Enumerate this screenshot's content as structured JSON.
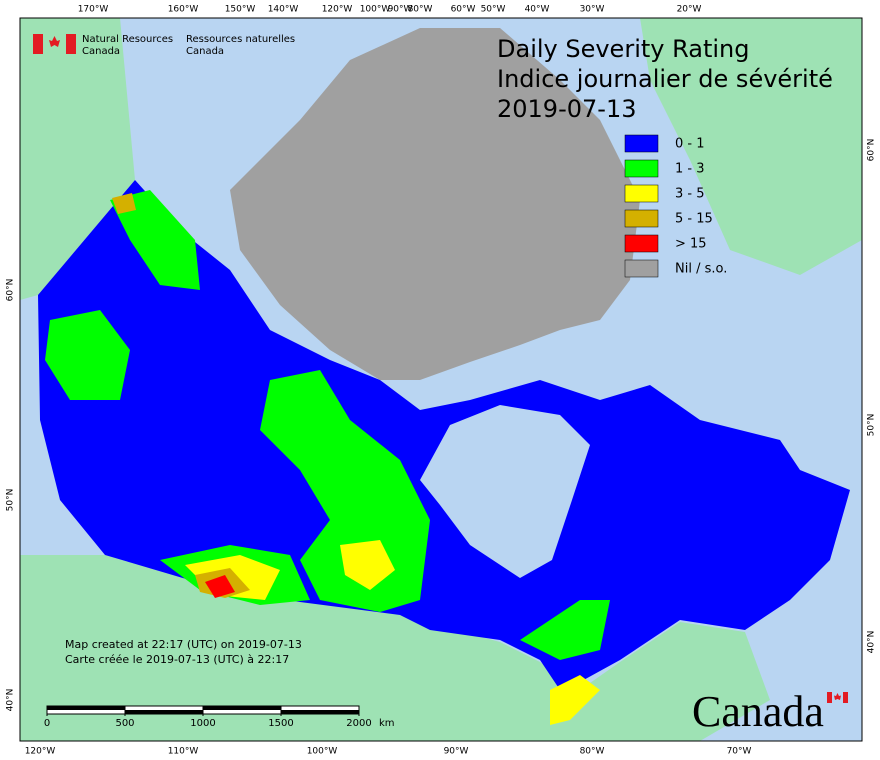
{
  "agency": {
    "en_line1": "Natural Resources",
    "en_line2": "Canada",
    "fr_line1": "Ressources naturelles",
    "fr_line2": "Canada"
  },
  "title": {
    "en": "Daily Severity Rating",
    "fr": "Indice journalier de sévérité",
    "date": "2019-07-13"
  },
  "legend": [
    {
      "label": "0 - 1",
      "color": "#0000ff"
    },
    {
      "label": "1 - 3",
      "color": "#00ff00"
    },
    {
      "label": "3 - 5",
      "color": "#ffff00"
    },
    {
      "label": "5 - 15",
      "color": "#d4b000"
    },
    {
      "label": "> 15",
      "color": "#ff0000"
    },
    {
      "label": "Nil / s.o.",
      "color": "#a0a0a0"
    }
  ],
  "credits": [
    "Map created at 22:17 (UTC) on 2019-07-13",
    "Carte créée le 2019-07-13 (UTC) à 22:17"
  ],
  "scale_bar": {
    "ticks": [
      0,
      500,
      1000,
      1500,
      2000
    ],
    "unit": "km"
  },
  "graticule": {
    "top": [
      "170°W",
      "160°W",
      "150°W",
      "140°W",
      "120°W",
      "100°W",
      "90°W",
      "80°W",
      "60°W",
      "50°W",
      "40°W",
      "30°W",
      "20°W"
    ],
    "bottom": [
      "120°W",
      "110°W",
      "100°W",
      "90°W",
      "80°W",
      "70°W"
    ],
    "left": [
      "60°N",
      "50°N",
      "40°N"
    ],
    "right": [
      "60°N",
      "50°N",
      "40°N"
    ]
  },
  "wordmark": "Canada"
}
